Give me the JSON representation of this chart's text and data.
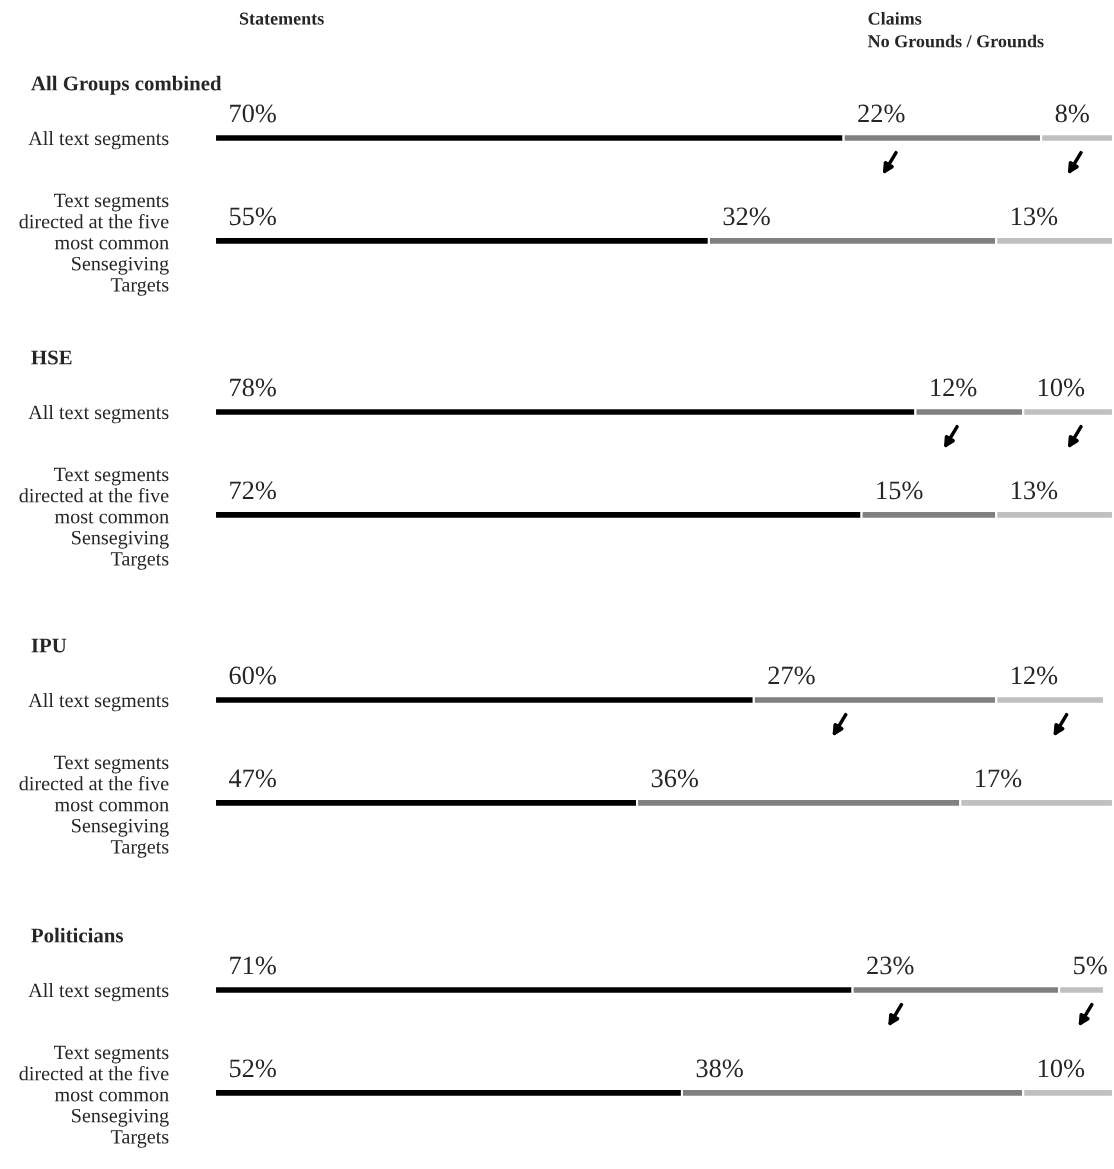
{
  "chart_data": [
    {
      "type": "bar",
      "orientation": "horizontal",
      "stacked": true,
      "title": "All Groups combined",
      "annotations": [
        "Statements",
        "Claims\nNo Grounds / Grounds"
      ],
      "categories": [
        "All text segments",
        "Text segments\ndirected at the five\nmost common\nSensegiving\nTargets"
      ],
      "series": [
        {
          "color": "#000000",
          "values": [
            70,
            55
          ],
          "value_labels": [
            "70%",
            "55%"
          ]
        },
        {
          "color": "#808080",
          "values": [
            22,
            32
          ],
          "value_labels": [
            "22%",
            "32%"
          ]
        },
        {
          "color": "#c0c0c0",
          "values": [
            8,
            13
          ],
          "value_labels": [
            "8%",
            "13%"
          ]
        }
      ]
    },
    {
      "type": "bar",
      "orientation": "horizontal",
      "stacked": true,
      "title": "HSE",
      "categories": [
        "All text segments",
        "Text segments\ndirected at the five\nmost common\nSensegiving\nTargets"
      ],
      "series": [
        {
          "color": "#000000",
          "values": [
            78,
            72
          ],
          "value_labels": [
            "78%",
            "72%"
          ]
        },
        {
          "color": "#808080",
          "values": [
            12,
            15
          ],
          "value_labels": [
            "12%",
            "15%"
          ]
        },
        {
          "color": "#c0c0c0",
          "values": [
            10,
            13
          ],
          "value_labels": [
            "10%",
            "13%"
          ]
        }
      ]
    },
    {
      "type": "bar",
      "orientation": "horizontal",
      "stacked": true,
      "title": "IPU",
      "categories": [
        "All text segments",
        "Text segments\ndirected at the five\nmost common\nSensegiving\nTargets"
      ],
      "series": [
        {
          "color": "#000000",
          "values": [
            60,
            47
          ],
          "value_labels": [
            "60%",
            "47%"
          ]
        },
        {
          "color": "#808080",
          "values": [
            27,
            36
          ],
          "value_labels": [
            "27%",
            "36%"
          ]
        },
        {
          "color": "#c0c0c0",
          "values": [
            12,
            17
          ],
          "value_labels": [
            "12%",
            "17%"
          ]
        }
      ]
    },
    {
      "type": "bar",
      "orientation": "horizontal",
      "stacked": true,
      "title": "Politicians",
      "categories": [
        "All text segments",
        "Text segments\ndirected at the five\nmost common\nSensegiving\nTargets"
      ],
      "series": [
        {
          "color": "#000000",
          "values": [
            71,
            52
          ],
          "value_labels": [
            "71%",
            "52%"
          ]
        },
        {
          "color": "#808080",
          "values": [
            23,
            38
          ],
          "value_labels": [
            "23%",
            "38%"
          ]
        },
        {
          "color": "#c0c0c0",
          "values": [
            5,
            10
          ],
          "value_labels": [
            "5%",
            "10%"
          ]
        }
      ]
    }
  ]
}
